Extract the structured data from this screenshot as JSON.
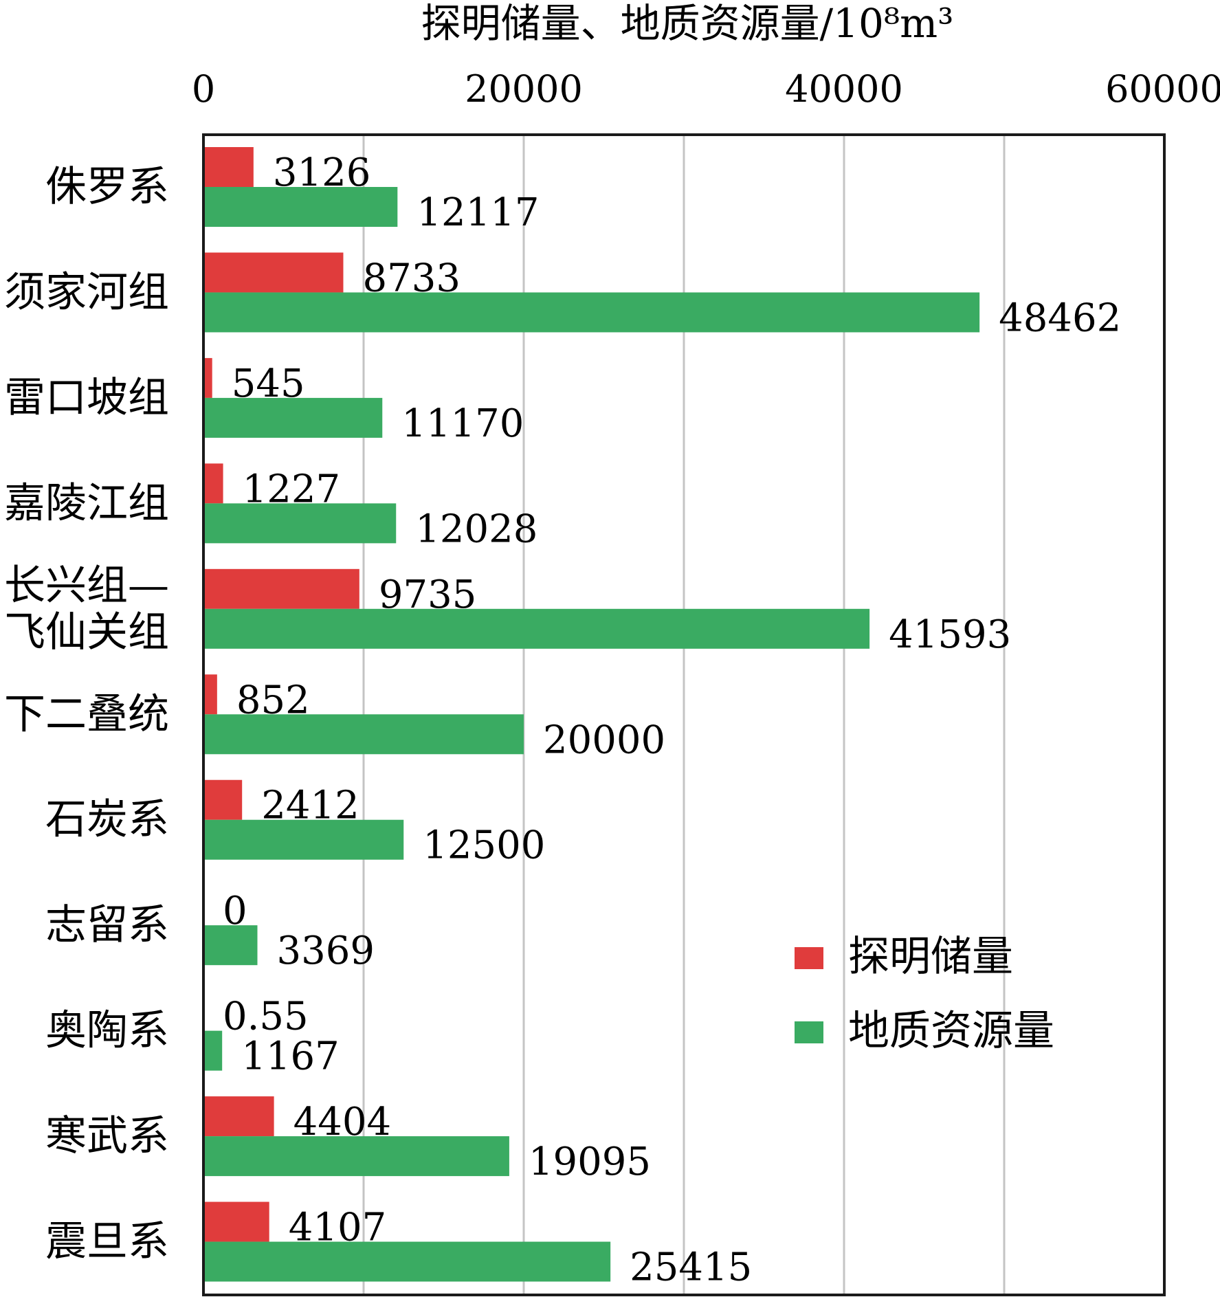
{
  "chart_data": {
    "type": "bar",
    "orientation": "horizontal",
    "title": "",
    "xlabel": "探明储量、地质资源量/10⁸m³",
    "ylabel": "",
    "xlim": [
      0,
      60000
    ],
    "xticks": [
      "0",
      "20000",
      "40000",
      "60000"
    ],
    "grid": true,
    "legend_position": "right",
    "categories": [
      [
        "侏罗系"
      ],
      [
        "须家河组"
      ],
      [
        "雷口坡组"
      ],
      [
        "嘉陵江组"
      ],
      [
        "长兴组—",
        "飞仙关组"
      ],
      [
        "下二叠统"
      ],
      [
        "石炭系"
      ],
      [
        "志留系"
      ],
      [
        "奥陶系"
      ],
      [
        "寒武系"
      ],
      [
        "震旦系"
      ]
    ],
    "series": [
      {
        "name": "探明储量",
        "color": "#e03c3c",
        "values": [
          3126,
          8733,
          545,
          1227,
          9735,
          852,
          2412,
          0,
          0.55,
          4404,
          4107
        ],
        "labels": [
          "3126",
          "8733",
          "545",
          "1227",
          "9735",
          "852",
          "2412",
          "0",
          "0.55",
          "4404",
          "4107"
        ]
      },
      {
        "name": "地质资源量",
        "color": "#3aab62",
        "values": [
          12117,
          48462,
          11170,
          12028,
          41593,
          20000,
          12500,
          3369,
          1167,
          19095,
          25415
        ],
        "labels": [
          "12117",
          "48462",
          "11170",
          "12028",
          "41593",
          "20000",
          "12500",
          "3369",
          "1167",
          "19095",
          "25415"
        ]
      }
    ]
  }
}
